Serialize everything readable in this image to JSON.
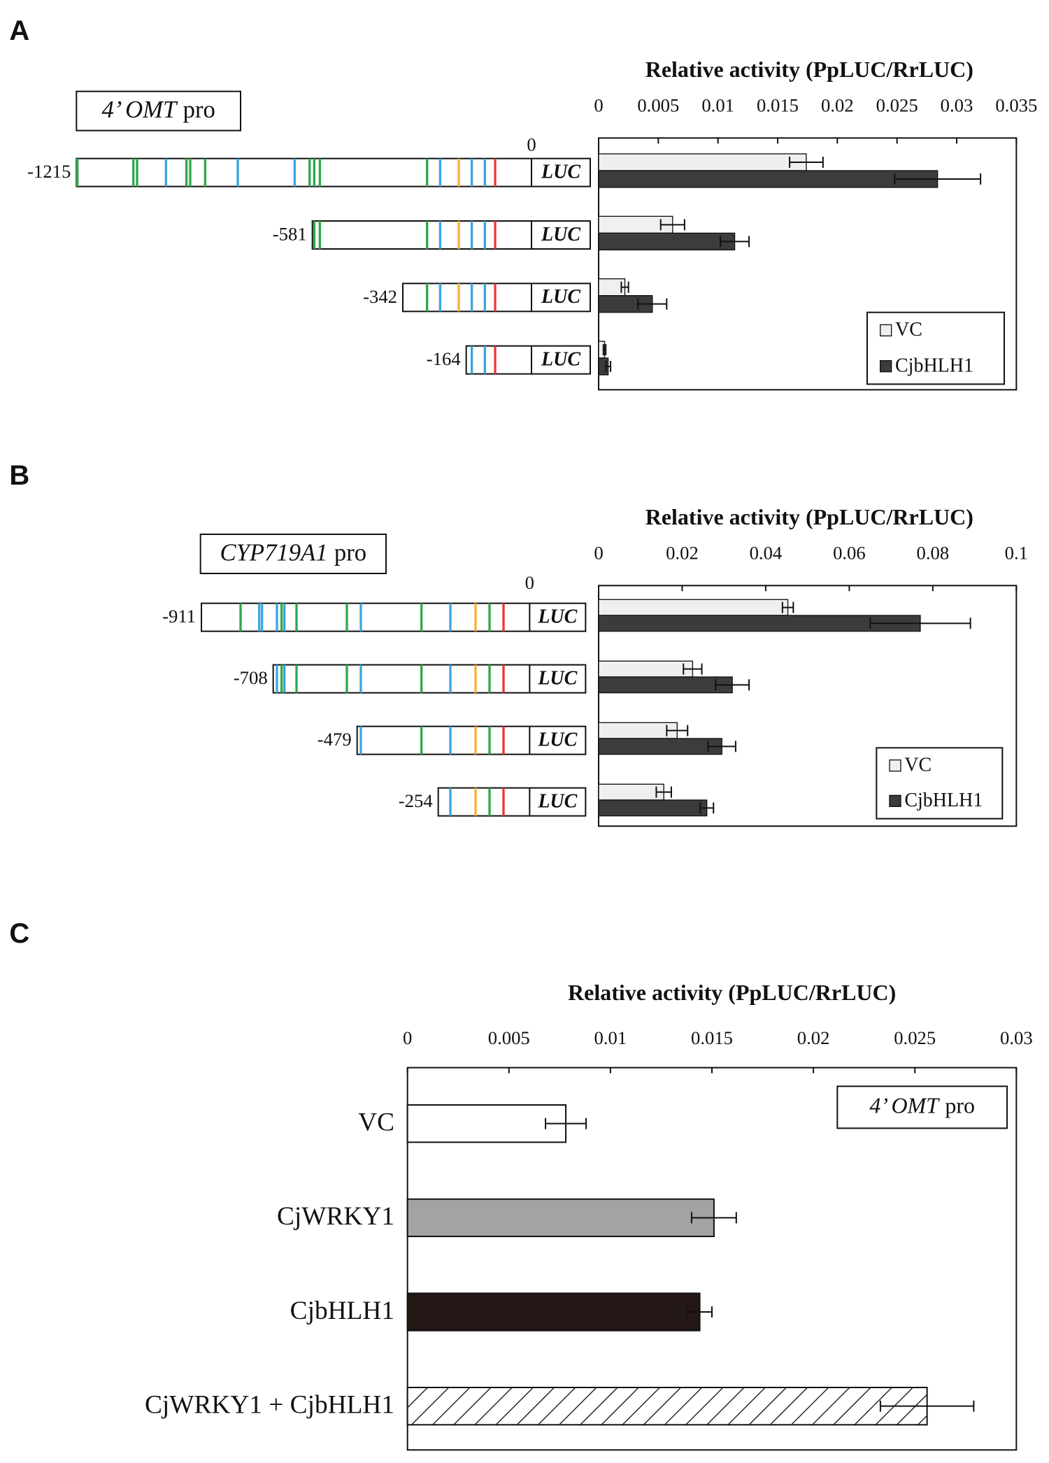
{
  "chart_data": [
    {
      "type": "bar",
      "panel": "A",
      "title": "Relative activity (PpLUC/RrLUC)",
      "promoter": "4’ OMT",
      "promoter_suffix": "pro",
      "origin_label": "0",
      "reporter": "LUC",
      "categories": [
        "-1215",
        "-581",
        "-342",
        "-164"
      ],
      "series": [
        {
          "name": "VC",
          "color": "#efefef",
          "values": [
            0.0174,
            0.0062,
            0.0022,
            0.0005
          ],
          "errors": [
            0.0014,
            0.001,
            0.0003,
            0.0001
          ]
        },
        {
          "name": "CjbHLH1",
          "color": "#3c3c3c",
          "values": [
            0.0284,
            0.0114,
            0.0045,
            0.0008
          ],
          "errors": [
            0.0036,
            0.0012,
            0.0012,
            0.0002
          ]
        }
      ],
      "xlim": [
        0,
        0.035
      ],
      "xticks": [
        0,
        0.005,
        0.01,
        0.015,
        0.02,
        0.025,
        0.03,
        0.035
      ]
    },
    {
      "type": "bar",
      "panel": "B",
      "title": "Relative activity (PpLUC/RrLUC)",
      "promoter": "CYP719A1",
      "promoter_suffix": "pro",
      "origin_label": "0",
      "reporter": "LUC",
      "categories": [
        "-911",
        "-708",
        "-479",
        "-254"
      ],
      "series": [
        {
          "name": "VC",
          "color": "#efefef",
          "values": [
            0.0453,
            0.0225,
            0.0188,
            0.0156
          ],
          "errors": [
            0.0013,
            0.0022,
            0.0025,
            0.0018
          ]
        },
        {
          "name": "CjbHLH1",
          "color": "#3c3c3c",
          "values": [
            0.077,
            0.032,
            0.0295,
            0.0259
          ],
          "errors": [
            0.012,
            0.004,
            0.0033,
            0.0016
          ]
        }
      ],
      "xlim": [
        0,
        0.1
      ],
      "xticks": [
        0,
        0.02,
        0.04,
        0.06,
        0.08,
        0.1
      ]
    },
    {
      "type": "bar",
      "panel": "C",
      "title": "Relative activity  (PpLUC/RrLUC)",
      "promoter": "4’ OMT",
      "promoter_suffix": "pro",
      "categories": [
        "VC",
        "CjWRKY1",
        "CjbHLH1",
        "CjWRKY1 + CjbHLH1"
      ],
      "values": [
        0.0078,
        0.0151,
        0.0144,
        0.0256
      ],
      "errors": [
        0.001,
        0.0011,
        0.0006,
        0.0023
      ],
      "colors": [
        "#ffffff",
        "#a3a3a3",
        "#231815",
        "#ffffff"
      ],
      "hatched": [
        false,
        false,
        false,
        true
      ],
      "xlim": [
        0,
        0.03
      ],
      "xticks": [
        0,
        0.005,
        0.01,
        0.015,
        0.02,
        0.025,
        0.03
      ]
    }
  ]
}
